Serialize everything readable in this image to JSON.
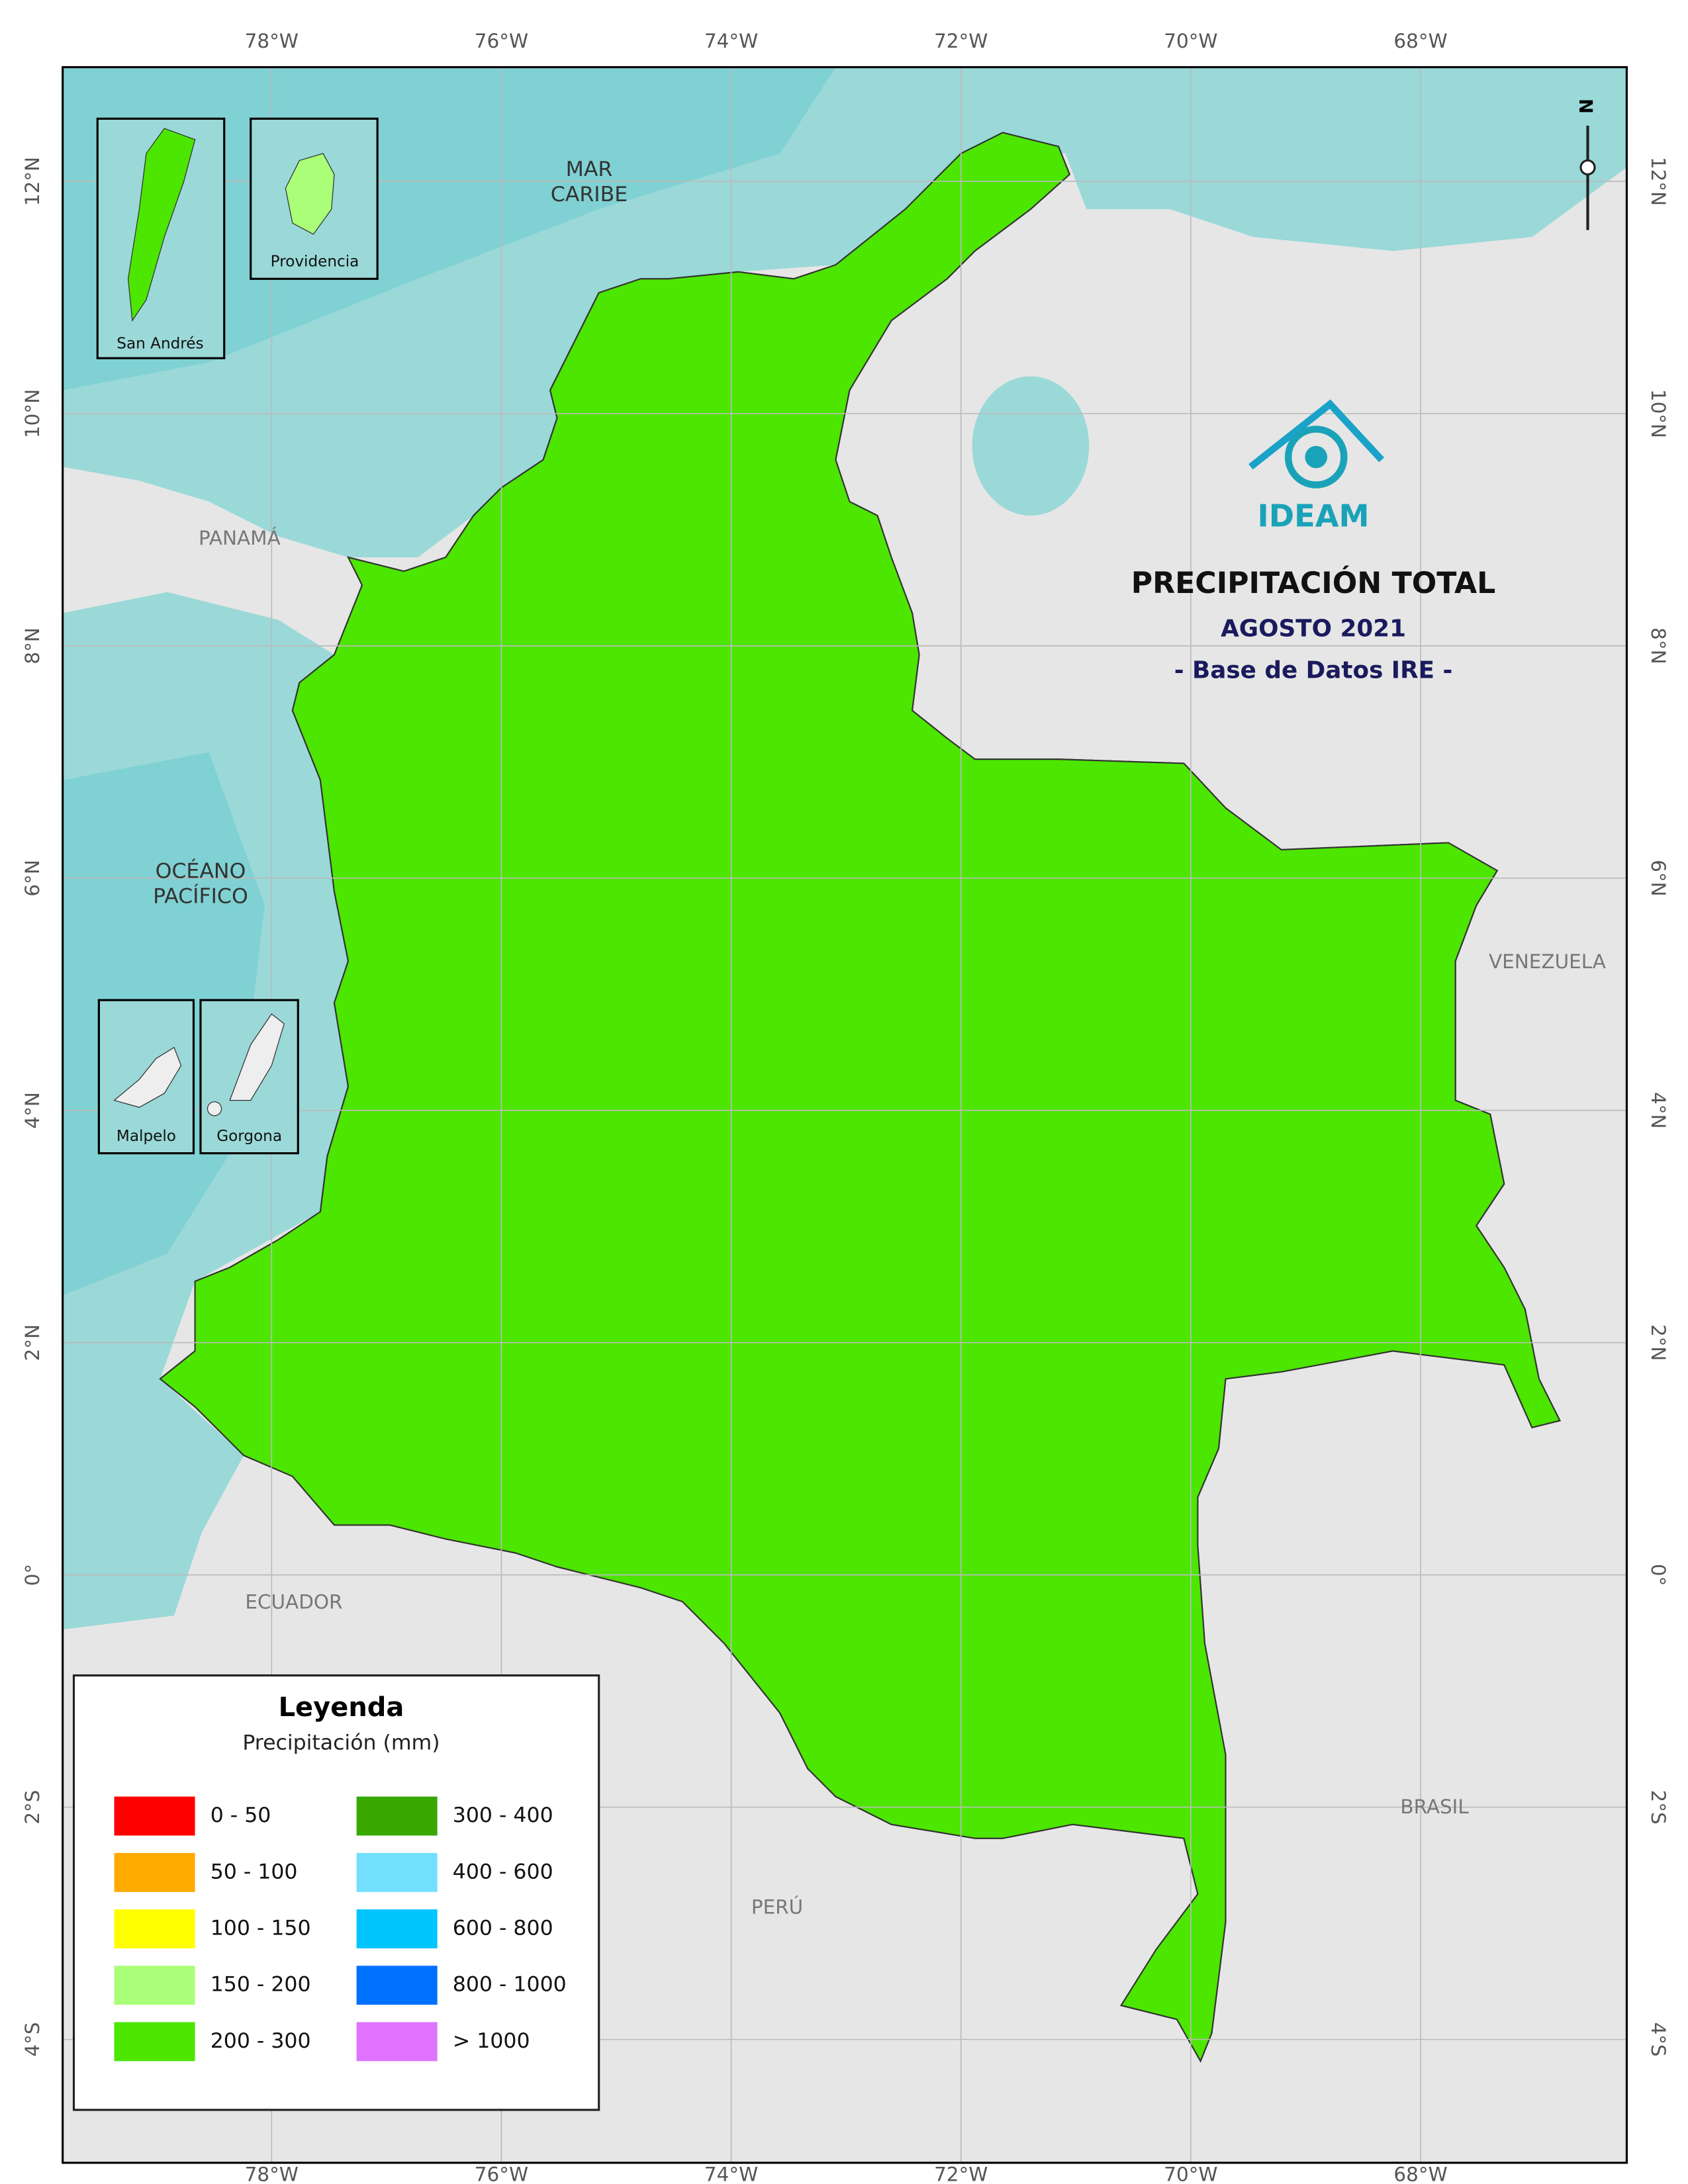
{
  "map": {
    "title": "PRECIPITACIÓN TOTAL",
    "period": "AGOSTO 2021",
    "source": "- Base de Datos IRE -",
    "logo": "IDEAM",
    "north": "N",
    "graticule": {
      "lon": [
        {
          "value": -78,
          "label": "78°W"
        },
        {
          "value": -76,
          "label": "76°W"
        },
        {
          "value": -74,
          "label": "74°W"
        },
        {
          "value": -72,
          "label": "72°W"
        },
        {
          "value": -70,
          "label": "70°W"
        },
        {
          "value": -68,
          "label": "68°W"
        }
      ],
      "lat": [
        {
          "value": 12,
          "label": "12°N"
        },
        {
          "value": 10,
          "label": "10°N"
        },
        {
          "value": 8,
          "label": "8°N"
        },
        {
          "value": 6,
          "label": "6°N"
        },
        {
          "value": 4,
          "label": "4°N"
        },
        {
          "value": 2,
          "label": "2°N"
        },
        {
          "value": 0,
          "label": "0°"
        },
        {
          "value": -2,
          "label": "2°S"
        },
        {
          "value": -4,
          "label": "4°S"
        }
      ]
    },
    "seas": [
      [
        "MAR",
        "CARIBE"
      ],
      [
        "OCÉANO",
        "PACÍFICO"
      ]
    ],
    "countries": [
      "PANAMÁ",
      "VENEZUELA",
      "ECUADOR",
      "PERÚ",
      "BRASIL"
    ],
    "insets": [
      "San Andrés",
      "Providencia",
      "Malpelo",
      "Gorgona"
    ],
    "legend": {
      "title": "Leyenda",
      "subtitle": "Precipitación (mm)",
      "classes": [
        {
          "label": "0 - 50",
          "color": "#ff0000"
        },
        {
          "label": "50 - 100",
          "color": "#ffaa00"
        },
        {
          "label": "100 - 150",
          "color": "#ffff00"
        },
        {
          "label": "150 - 200",
          "color": "#aaff78"
        },
        {
          "label": "200 - 300",
          "color": "#4ce600"
        },
        {
          "label": "300 - 400",
          "color": "#38a800"
        },
        {
          "label": "400 - 600",
          "color": "#73dfff"
        },
        {
          "label": "600 - 800",
          "color": "#00c5ff"
        },
        {
          "label": "800 - 1000",
          "color": "#0070ff"
        },
        {
          "label": "> 1000",
          "color": "#df73ff"
        }
      ]
    }
  }
}
